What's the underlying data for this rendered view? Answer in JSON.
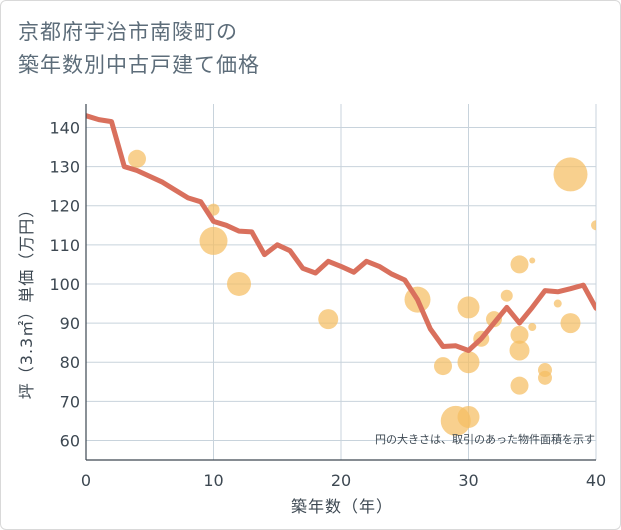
{
  "title": {
    "line1": "京都府宇治市南陵町の",
    "line2": "築年数別中古戸建て価格"
  },
  "colors": {
    "line": "#d9705d",
    "bubble": "#f5be63",
    "grid": "#c8d3dc",
    "axis": "#3d4852"
  },
  "chart_data": {
    "type": "scatter",
    "title": "京都府宇治市南陵町の築年数別中古戸建て価格",
    "xlabel": "築年数（年）",
    "ylabel": "坪（3.3㎡）単価（万円）",
    "xlim": [
      0,
      40
    ],
    "ylim": [
      55,
      146
    ],
    "xticks": [
      0,
      10,
      20,
      30,
      40
    ],
    "yticks": [
      60,
      70,
      80,
      90,
      100,
      110,
      120,
      130,
      140
    ],
    "note": "円の大きさは、取引のあった物件面積を示す",
    "series": [
      {
        "name": "bubbles",
        "type": "scatter",
        "points": [
          {
            "x": 4,
            "y": 132,
            "s": 9
          },
          {
            "x": 10,
            "y": 119,
            "s": 6
          },
          {
            "x": 10,
            "y": 111,
            "s": 14
          },
          {
            "x": 12,
            "y": 100,
            "s": 12
          },
          {
            "x": 19,
            "y": 91,
            "s": 10
          },
          {
            "x": 26,
            "y": 96,
            "s": 13
          },
          {
            "x": 28,
            "y": 79,
            "s": 9
          },
          {
            "x": 29,
            "y": 65,
            "s": 15
          },
          {
            "x": 30,
            "y": 66,
            "s": 11
          },
          {
            "x": 30,
            "y": 80,
            "s": 11
          },
          {
            "x": 30,
            "y": 94,
            "s": 11
          },
          {
            "x": 31,
            "y": 86,
            "s": 8
          },
          {
            "x": 32,
            "y": 91,
            "s": 8
          },
          {
            "x": 33,
            "y": 97,
            "s": 6
          },
          {
            "x": 34,
            "y": 105,
            "s": 9
          },
          {
            "x": 34,
            "y": 87,
            "s": 9
          },
          {
            "x": 34,
            "y": 83,
            "s": 10
          },
          {
            "x": 34,
            "y": 74,
            "s": 9
          },
          {
            "x": 35,
            "y": 106,
            "s": 3
          },
          {
            "x": 35,
            "y": 89,
            "s": 4
          },
          {
            "x": 36,
            "y": 78,
            "s": 7
          },
          {
            "x": 36,
            "y": 76,
            "s": 7
          },
          {
            "x": 37,
            "y": 95,
            "s": 4
          },
          {
            "x": 38,
            "y": 128,
            "s": 17
          },
          {
            "x": 38,
            "y": 90,
            "s": 10
          },
          {
            "x": 40,
            "y": 115,
            "s": 5
          }
        ]
      },
      {
        "name": "trend",
        "type": "line",
        "x": [
          0,
          1,
          2,
          3,
          4,
          5,
          6,
          7,
          8,
          9,
          10,
          11,
          12,
          13,
          14,
          15,
          16,
          17,
          18,
          19,
          20,
          21,
          22,
          23,
          24,
          25,
          26,
          27,
          28,
          29,
          30,
          31,
          32,
          33,
          34,
          35,
          36,
          37,
          38,
          39,
          40
        ],
        "y": [
          143,
          142,
          141.5,
          130,
          129,
          127.5,
          126,
          124,
          122,
          121,
          116,
          115,
          113.5,
          113.3,
          107.5,
          110,
          108.5,
          104,
          102.8,
          105.8,
          104.5,
          103,
          105.8,
          104.5,
          102.5,
          101,
          96,
          88.5,
          84,
          84.2,
          83,
          86,
          90,
          94,
          90,
          94,
          98.3,
          98,
          98.8,
          99.7,
          93.8
        ]
      }
    ]
  }
}
